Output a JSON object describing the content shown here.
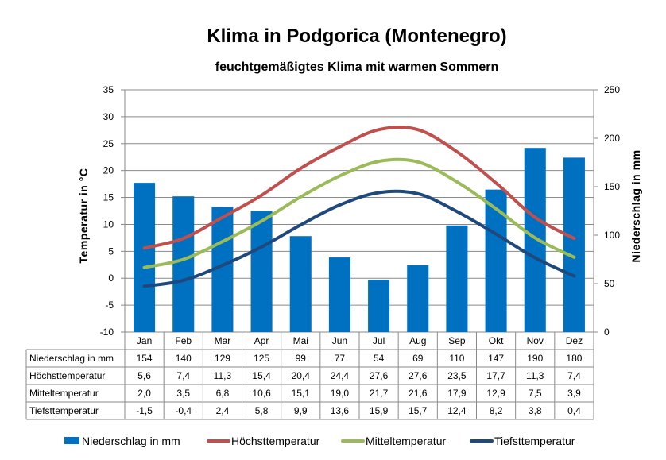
{
  "chart_data": {
    "type": "bar+line",
    "title": "Klima in Podgorica (Montenegro)",
    "subtitle": "feuchtgemäßigtes Klima mit warmen Sommern",
    "categories": [
      "Jan",
      "Feb",
      "Mar",
      "Apr",
      "Mai",
      "Jun",
      "Jul",
      "Aug",
      "Sep",
      "Okt",
      "Nov",
      "Dez"
    ],
    "y_left": {
      "label": "Temperatur  in  °C",
      "min": -10,
      "max": 35,
      "ticks": [
        "-10",
        "-5",
        "0",
        "5",
        "10",
        "15",
        "20",
        "25",
        "30",
        "35"
      ]
    },
    "y_right": {
      "label": "Niederschlag  in  mm",
      "min": 0,
      "max": 250,
      "ticks": [
        "0",
        "50",
        "100",
        "150",
        "200",
        "250"
      ]
    },
    "grid": true,
    "legend_position": "bottom",
    "bar_series": {
      "name": "Niederschlag in mm",
      "axis": "right",
      "color": "#0070C0",
      "values": [
        154,
        140,
        129,
        125,
        99,
        77,
        54,
        69,
        110,
        147,
        190,
        180
      ]
    },
    "line_series": [
      {
        "name": "Höchsttemperatur",
        "axis": "left",
        "color": "#C0504D",
        "values": [
          5.6,
          7.4,
          11.3,
          15.4,
          20.4,
          24.4,
          27.6,
          27.6,
          23.5,
          17.7,
          11.3,
          7.4
        ]
      },
      {
        "name": "Mitteltemperatur",
        "axis": "left",
        "color": "#9BBB59",
        "values": [
          2.0,
          3.5,
          6.8,
          10.6,
          15.1,
          19.0,
          21.7,
          21.6,
          17.9,
          12.9,
          7.5,
          3.9
        ]
      },
      {
        "name": "Tiefsttemperatur",
        "axis": "left",
        "color": "#1F497D",
        "values": [
          -1.5,
          -0.4,
          2.4,
          5.8,
          9.9,
          13.6,
          15.9,
          15.7,
          12.4,
          8.2,
          3.8,
          0.4
        ]
      }
    ],
    "table": {
      "rows": [
        {
          "label": "Niederschlag in mm",
          "cells": [
            "154",
            "140",
            "129",
            "125",
            "99",
            "77",
            "54",
            "69",
            "110",
            "147",
            "190",
            "180"
          ]
        },
        {
          "label": "Höchsttemperatur",
          "cells": [
            "5,6",
            "7,4",
            "11,3",
            "15,4",
            "20,4",
            "24,4",
            "27,6",
            "27,6",
            "23,5",
            "17,7",
            "11,3",
            "7,4"
          ]
        },
        {
          "label": "Mitteltemperatur",
          "cells": [
            "2,0",
            "3,5",
            "6,8",
            "10,6",
            "15,1",
            "19,0",
            "21,7",
            "21,6",
            "17,9",
            "12,9",
            "7,5",
            "3,9"
          ]
        },
        {
          "label": "Tiefsttemperatur",
          "cells": [
            "-1,5",
            "-0,4",
            "2,4",
            "5,8",
            "9,9",
            "13,6",
            "15,9",
            "15,7",
            "12,4",
            "8,2",
            "3,8",
            "0,4"
          ]
        }
      ]
    }
  }
}
